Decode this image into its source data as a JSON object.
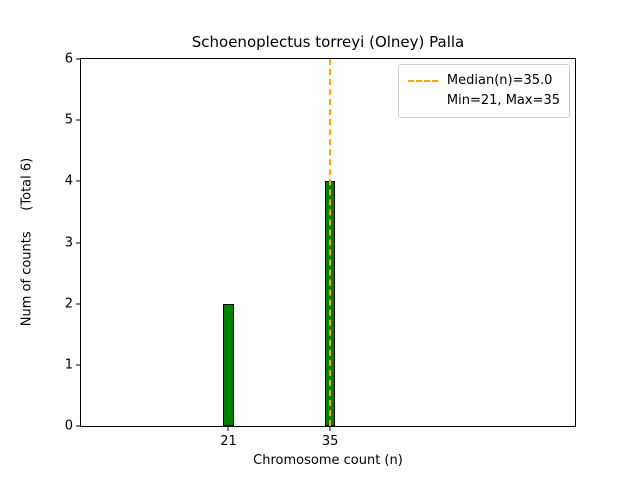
{
  "chart_data": {
    "type": "bar",
    "title": "Schoenoplectus torreyi (Olney) Palla",
    "xlabel": "Chromosome count (n)",
    "ylabel": "Num of counts     (Total 6)",
    "total_counts": 6,
    "x": [
      21,
      35
    ],
    "values": [
      2,
      4
    ],
    "bar_width": 1.4,
    "xticks": [
      21,
      35
    ],
    "yticks": [
      0,
      1,
      2,
      3,
      4,
      5,
      6
    ],
    "xlim": [
      0.7,
      68.7
    ],
    "ylim": [
      0,
      6
    ],
    "bar_color": "#008000",
    "bar_edge_color": "#000000",
    "median_line": {
      "x": 35.0,
      "color": "#FFA500",
      "style": "dashed"
    },
    "legend": {
      "position": "upper right",
      "entries": [
        "Median(n)=35.0",
        "Min=21, Max=35"
      ]
    },
    "stats": {
      "median": 35.0,
      "min": 21,
      "max": 35
    }
  }
}
